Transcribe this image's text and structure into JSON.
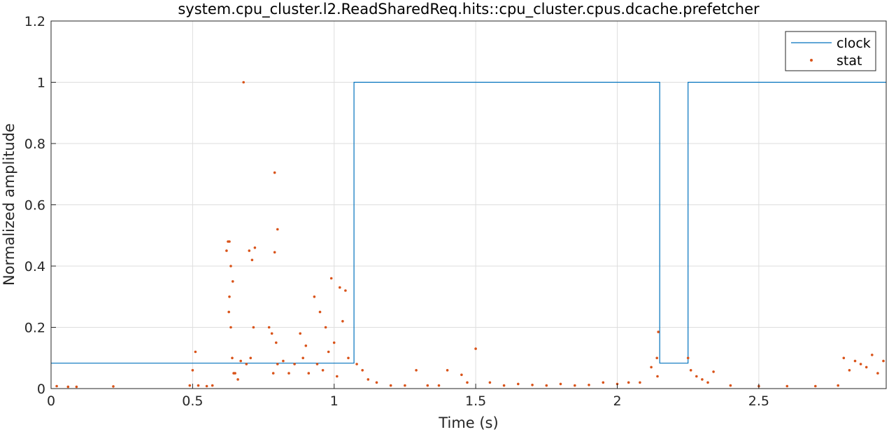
{
  "chart_data": {
    "type": "line",
    "title": "system.cpu_cluster.l2.ReadSharedReq.hits::cpu_cluster.cpus.dcache.prefetcher",
    "xlabel": "Time (s)",
    "ylabel": "Normalized amplitude",
    "xlim": [
      0,
      2.95
    ],
    "ylim": [
      0,
      1.2
    ],
    "xticks": [
      0,
      0.5,
      1,
      1.5,
      2,
      2.5
    ],
    "xtick_labels": [
      "0",
      "0.5",
      "1",
      "1.5",
      "2",
      "2.5"
    ],
    "yticks": [
      0,
      0.2,
      0.4,
      0.6,
      0.8,
      1,
      1.2
    ],
    "ytick_labels": [
      "0",
      "0.2",
      "0.4",
      "0.6",
      "0.8",
      "1",
      "1.2"
    ],
    "grid": true,
    "legend_position": "top-right",
    "colors": {
      "clock": "#0072BD",
      "stat": "#D95319"
    },
    "series": [
      {
        "name": "clock",
        "style": "step-line",
        "x": [
          0,
          1.07,
          1.07,
          2.15,
          2.15,
          2.25,
          2.25,
          2.95
        ],
        "y": [
          0.083,
          0.083,
          1,
          1,
          0.083,
          0.083,
          1,
          1
        ]
      },
      {
        "name": "stat",
        "style": "markers",
        "x": [
          0.02,
          0.06,
          0.09,
          0.22,
          0.49,
          0.5,
          0.51,
          0.52,
          0.55,
          0.57,
          0.62,
          0.625,
          0.63,
          0.635,
          0.64,
          0.645,
          0.63,
          0.635,
          0.628,
          0.642,
          0.65,
          0.66,
          0.67,
          0.68,
          0.69,
          0.7,
          0.71,
          0.72,
          0.715,
          0.705,
          0.77,
          0.78,
          0.79,
          0.8,
          0.79,
          0.795,
          0.8,
          0.785,
          0.82,
          0.84,
          0.86,
          0.88,
          0.89,
          0.9,
          0.91,
          0.93,
          0.95,
          0.97,
          0.99,
          1.0,
          1.02,
          1.04,
          1.05,
          0.96,
          0.98,
          1.01,
          1.03,
          0.94,
          1.08,
          1.1,
          1.12,
          1.15,
          1.2,
          1.25,
          1.29,
          1.33,
          1.37,
          1.4,
          1.45,
          1.47,
          1.5,
          1.55,
          1.6,
          1.65,
          1.7,
          1.75,
          1.8,
          1.85,
          1.9,
          1.95,
          2.0,
          2.04,
          2.08,
          2.12,
          2.14,
          2.145,
          2.142,
          2.25,
          2.26,
          2.28,
          2.3,
          2.32,
          2.34,
          2.4,
          2.5,
          2.6,
          2.7,
          2.78,
          2.8,
          2.82,
          2.84,
          2.86,
          2.88,
          2.9,
          2.92,
          2.94
        ],
        "y": [
          0.008,
          0.006,
          0.006,
          0.007,
          0.01,
          0.06,
          0.12,
          0.01,
          0.008,
          0.01,
          0.45,
          0.48,
          0.3,
          0.2,
          0.1,
          0.05,
          0.48,
          0.4,
          0.25,
          0.35,
          0.05,
          0.03,
          0.09,
          1.0,
          0.08,
          0.45,
          0.42,
          0.46,
          0.2,
          0.1,
          0.2,
          0.18,
          0.705,
          0.52,
          0.445,
          0.15,
          0.08,
          0.05,
          0.09,
          0.05,
          0.08,
          0.18,
          0.1,
          0.14,
          0.05,
          0.3,
          0.25,
          0.2,
          0.36,
          0.15,
          0.33,
          0.32,
          0.1,
          0.06,
          0.12,
          0.04,
          0.22,
          0.08,
          0.08,
          0.06,
          0.03,
          0.02,
          0.01,
          0.01,
          0.06,
          0.01,
          0.01,
          0.06,
          0.045,
          0.02,
          0.13,
          0.02,
          0.01,
          0.015,
          0.012,
          0.01,
          0.015,
          0.01,
          0.012,
          0.02,
          0.015,
          0.02,
          0.02,
          0.07,
          0.1,
          0.185,
          0.04,
          0.1,
          0.06,
          0.04,
          0.03,
          0.02,
          0.055,
          0.01,
          0.008,
          0.008,
          0.008,
          0.01,
          0.1,
          0.06,
          0.09,
          0.08,
          0.07,
          0.11,
          0.05,
          0.09
        ]
      }
    ]
  }
}
